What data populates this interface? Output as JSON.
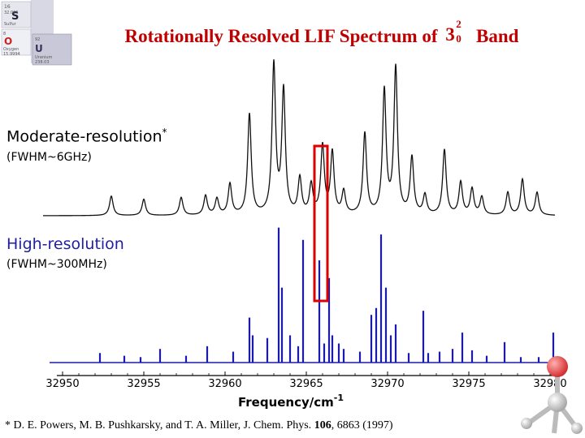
{
  "slide": {
    "title_prefix": "Rotationally Resolved LIF Spectrum of",
    "title_band_base": "3",
    "title_band_sup": "2",
    "title_band_sub": "0",
    "title_suffix": "Band",
    "title_color": "#c00000",
    "logo": {
      "tiles": [
        {
          "number": "16",
          "symbol": "S",
          "lines": [
            "Sulfur",
            "32.065"
          ]
        },
        {
          "number": "8",
          "symbol": "O",
          "lines": [
            "Oxygen",
            "15.9994"
          ]
        },
        {
          "number": "92",
          "symbol": "U",
          "lines": [
            "Uranium",
            "238.03"
          ]
        }
      ]
    }
  },
  "labels": {
    "moderate": "Moderate-resolution",
    "moderate_mark": "*",
    "moderate_fwhm": "(FWHM~6GHz)",
    "high": "High-resolution",
    "high_fwhm": "(FWHM~300MHz)"
  },
  "footnote": {
    "prefix": "* D. E. Powers, M. B. Pushkarsky, and T. A. Miller, J. Chem. Phys.",
    "volume": "106",
    "suffix": ", 6863 (1997)"
  },
  "colors": {
    "moderate_trace": "#111111",
    "high_trace": "#1a1ab0",
    "highlight_box": "#dd0000",
    "high_label": "#1f1fa0"
  },
  "chart_data": {
    "type": "line",
    "xlabel": "Frequency/cm",
    "xlabel_exponent": "-1",
    "xlim": [
      32950,
      32980
    ],
    "xticks": [
      32950,
      32955,
      32960,
      32965,
      32970,
      32975,
      32980
    ],
    "grid": false,
    "highlight_region": [
      32965.5,
      32966.3
    ],
    "series": [
      {
        "name": "Moderate-resolution",
        "color": "#111111",
        "baseline": 0.04,
        "peaks": [
          [
            32953.0,
            0.12
          ],
          [
            32955.0,
            0.1
          ],
          [
            32957.3,
            0.11
          ],
          [
            32958.8,
            0.12
          ],
          [
            32959.5,
            0.1
          ],
          [
            32960.3,
            0.19
          ],
          [
            32961.5,
            0.62
          ],
          [
            32963.0,
            0.92
          ],
          [
            32963.6,
            0.76
          ],
          [
            32964.6,
            0.22
          ],
          [
            32965.3,
            0.18
          ],
          [
            32966.0,
            0.42
          ],
          [
            32966.6,
            0.38
          ],
          [
            32967.3,
            0.14
          ],
          [
            32968.6,
            0.5
          ],
          [
            32969.8,
            0.76
          ],
          [
            32970.5,
            0.9
          ],
          [
            32971.5,
            0.35
          ],
          [
            32972.3,
            0.12
          ],
          [
            32973.5,
            0.4
          ],
          [
            32974.5,
            0.2
          ],
          [
            32975.2,
            0.16
          ],
          [
            32975.8,
            0.11
          ],
          [
            32977.4,
            0.14
          ],
          [
            32978.3,
            0.22
          ],
          [
            32979.2,
            0.14
          ]
        ]
      },
      {
        "name": "High-resolution",
        "color": "#1a1ab0",
        "lines": [
          [
            32952.3,
            0.07
          ],
          [
            32953.8,
            0.05
          ],
          [
            32954.8,
            0.04
          ],
          [
            32956.0,
            0.1
          ],
          [
            32957.6,
            0.05
          ],
          [
            32958.9,
            0.12
          ],
          [
            32960.5,
            0.08
          ],
          [
            32961.5,
            0.33
          ],
          [
            32961.7,
            0.2
          ],
          [
            32962.6,
            0.18
          ],
          [
            32963.3,
            0.99
          ],
          [
            32963.5,
            0.55
          ],
          [
            32964.0,
            0.2
          ],
          [
            32964.5,
            0.12
          ],
          [
            32964.8,
            0.9
          ],
          [
            32965.8,
            0.75
          ],
          [
            32966.1,
            0.14
          ],
          [
            32966.4,
            0.62
          ],
          [
            32966.6,
            0.2
          ],
          [
            32967.0,
            0.14
          ],
          [
            32967.3,
            0.1
          ],
          [
            32968.3,
            0.08
          ],
          [
            32969.0,
            0.35
          ],
          [
            32969.3,
            0.4
          ],
          [
            32969.6,
            0.94
          ],
          [
            32969.9,
            0.55
          ],
          [
            32970.2,
            0.2
          ],
          [
            32970.5,
            0.28
          ],
          [
            32971.3,
            0.07
          ],
          [
            32972.2,
            0.38
          ],
          [
            32972.5,
            0.07
          ],
          [
            32973.2,
            0.08
          ],
          [
            32974.0,
            0.1
          ],
          [
            32974.6,
            0.22
          ],
          [
            32975.2,
            0.09
          ],
          [
            32976.1,
            0.05
          ],
          [
            32977.2,
            0.15
          ],
          [
            32978.2,
            0.04
          ],
          [
            32979.3,
            0.04
          ],
          [
            32980.2,
            0.22
          ]
        ]
      }
    ]
  }
}
